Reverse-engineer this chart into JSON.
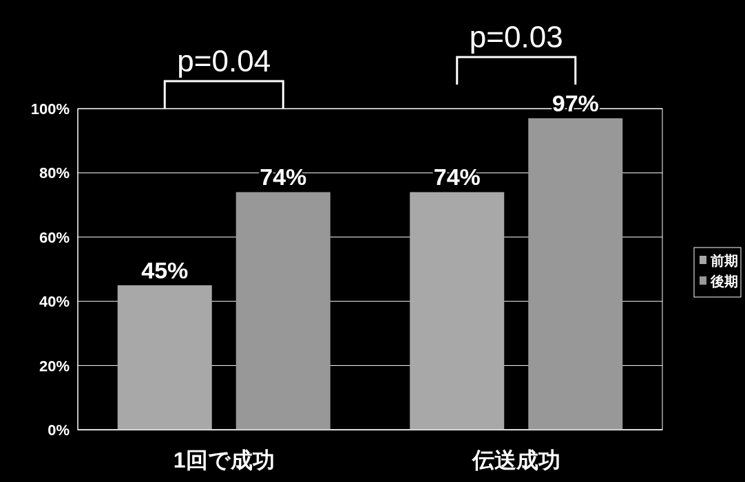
{
  "chart_data": {
    "type": "bar",
    "categories": [
      "1回で成功",
      "伝送成功"
    ],
    "series": [
      {
        "name": "前期",
        "color": "#a8a8a8",
        "values": [
          45,
          74
        ],
        "value_labels": [
          "45%",
          "74%"
        ]
      },
      {
        "name": "後期",
        "color": "#989898",
        "values": [
          74,
          97
        ],
        "value_labels": [
          "74%",
          "97%"
        ]
      }
    ],
    "ylim": [
      0,
      100
    ],
    "yticks": [
      {
        "value": 0,
        "label": "0%"
      },
      {
        "value": 20,
        "label": "20%"
      },
      {
        "value": 40,
        "label": "40%"
      },
      {
        "value": 60,
        "label": "60%"
      },
      {
        "value": 80,
        "label": "80%"
      },
      {
        "value": 100,
        "label": "100%"
      }
    ],
    "grid": "y",
    "legend": "right",
    "annotations": [
      "p=0.04",
      "p=0.03"
    ]
  }
}
